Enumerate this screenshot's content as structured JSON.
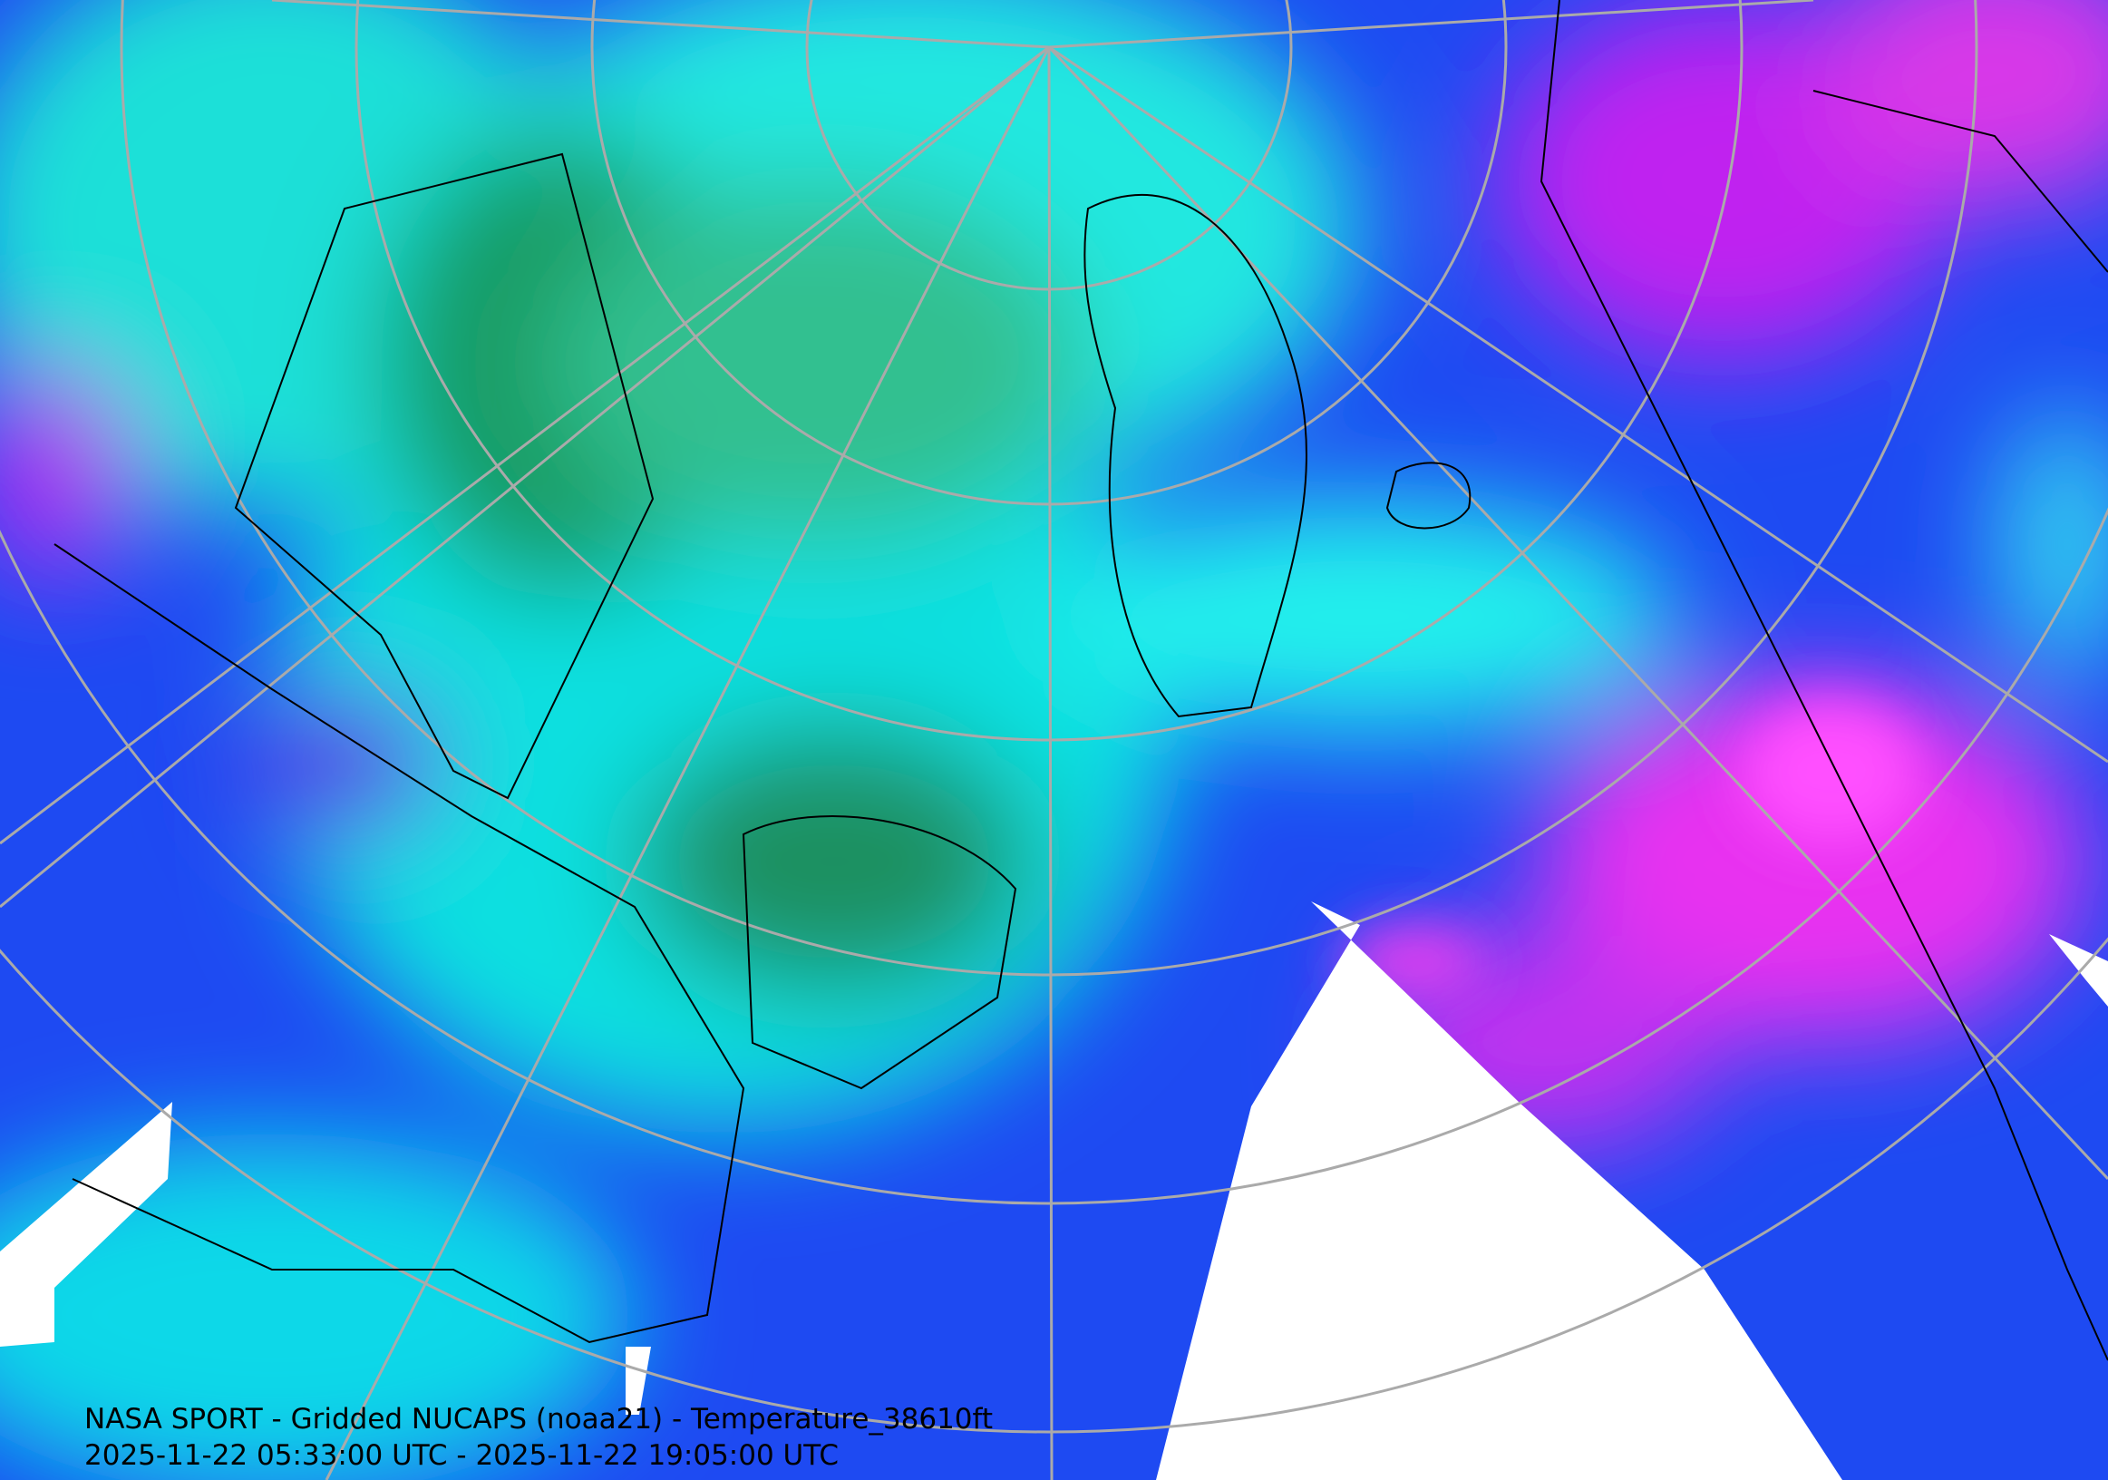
{
  "caption": {
    "line1": "NASA SPORT - Gridded NUCAPS (noaa21) - Temperature_38610ft",
    "line2": "2025-11-22 05:33:00 UTC - 2025-11-22 19:05:00 UTC"
  }
}
